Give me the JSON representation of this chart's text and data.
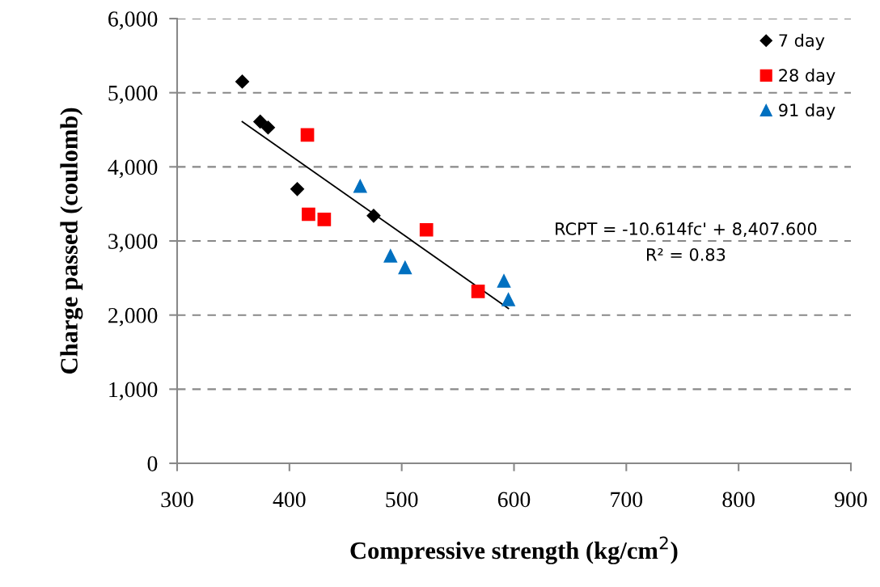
{
  "chart_data": {
    "type": "scatter",
    "xlabel": "Compressive strength (kg/cm$^{2}$)",
    "ylabel": "Charge passed (coulomb)",
    "xlim": [
      300,
      900
    ],
    "xticks": [
      300,
      400,
      500,
      600,
      700,
      800,
      900
    ],
    "ylim": [
      0,
      6000
    ],
    "yticks": [
      {
        "value": 0,
        "label": "0"
      },
      {
        "value": 1000,
        "label": "1,000"
      },
      {
        "value": 2000,
        "label": "2,000"
      },
      {
        "value": 3000,
        "label": "3,000"
      },
      {
        "value": 4000,
        "label": "4,000"
      },
      {
        "value": 5000,
        "label": "5,000"
      },
      {
        "value": 6000,
        "label": "6,000"
      }
    ],
    "grid": "y",
    "legend": "top right",
    "annotations": [
      "RCPT = -10.614fc' + 8,407.600",
      "R² = 0.83"
    ],
    "series": [
      {
        "name": "7 day",
        "color": "#000000",
        "marker": "diamond",
        "x": [
          358,
          374,
          381,
          407,
          475
        ],
        "values": [
          5150,
          4610,
          4530,
          3700,
          3340
        ]
      },
      {
        "name": "28 day",
        "color": "#ff0000",
        "marker": "square",
        "x": [
          416,
          417,
          431,
          522,
          568
        ],
        "values": [
          4430,
          3360,
          3290,
          3150,
          2320
        ]
      },
      {
        "name": "91 day",
        "color": "#0070c0",
        "marker": "triangle",
        "x": [
          463,
          490,
          503,
          591,
          595
        ],
        "values": [
          3740,
          2800,
          2640,
          2460,
          2210
        ]
      },
      {
        "type": "line",
        "color": "#000000",
        "x": [
          358,
          595
        ],
        "values": [
          4610,
          2090
        ]
      }
    ]
  }
}
